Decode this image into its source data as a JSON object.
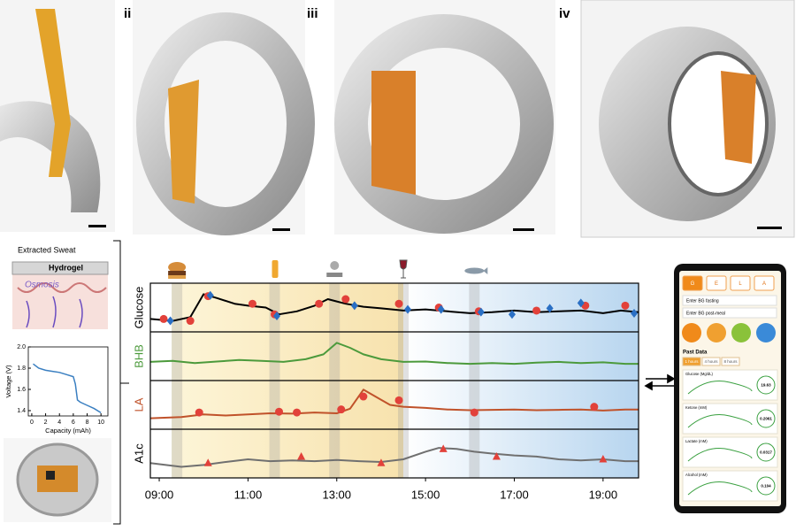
{
  "panel_labels": [
    "ii",
    "iii",
    "iv"
  ],
  "sweat_diagram": {
    "top": "Extracted Sweat",
    "hydrogel": "Hydrogel",
    "osmosis": "Osmosis"
  },
  "chart_data": [
    {
      "type": "line",
      "xlabel": "Capacity (mAh)",
      "ylabel": "Voltage (V)",
      "color": "#3a7fc1",
      "x": [
        0.2,
        1,
        2,
        3,
        4,
        5,
        6,
        6.3,
        6.6,
        7,
        8,
        9,
        10
      ],
      "values": [
        1.84,
        1.8,
        1.78,
        1.77,
        1.76,
        1.74,
        1.72,
        1.65,
        1.5,
        1.48,
        1.45,
        1.42,
        1.38
      ],
      "xlim": [
        -0.5,
        11
      ],
      "ylim": [
        1.35,
        2.0
      ],
      "xticks": [
        0,
        2,
        4,
        6,
        8,
        10
      ],
      "yticks": [
        1.4,
        1.6,
        1.8,
        {
          "value": 2.0,
          "label": "2.0"
        }
      ]
    },
    {
      "type": "tracks",
      "xlim": [
        8.8,
        19.8
      ],
      "xticks": [
        {
          "value": 9,
          "label": "09:00"
        },
        {
          "value": 11,
          "label": "11:00"
        },
        {
          "value": 13,
          "label": "13:00"
        },
        {
          "value": 15,
          "label": "15:00"
        },
        {
          "value": 17,
          "label": "17:00"
        },
        {
          "value": 19,
          "label": "19:00"
        }
      ],
      "event_times": [
        9.4,
        11.6,
        12.95,
        14.5,
        16.1
      ],
      "tracks": [
        {
          "name": "Glucose",
          "color": "#000000",
          "label_color": "#000000",
          "ylim": [
            0,
            1
          ],
          "x": [
            8.8,
            9.3,
            9.7,
            10,
            10.3,
            10.7,
            11,
            11.4,
            11.7,
            12.1,
            12.5,
            12.8,
            13.2,
            13.6,
            14,
            14.5,
            15,
            15.5,
            16,
            16.5,
            17,
            17.5,
            18,
            18.5,
            19,
            19.4,
            19.8
          ],
          "values": [
            0.2,
            0.15,
            0.25,
            0.85,
            0.75,
            0.6,
            0.55,
            0.5,
            0.32,
            0.4,
            0.55,
            0.72,
            0.6,
            0.52,
            0.48,
            0.42,
            0.45,
            0.4,
            0.35,
            0.38,
            0.42,
            0.38,
            0.4,
            0.42,
            0.35,
            0.42,
            0.38
          ],
          "markers": [
            {
              "shape": "circle",
              "color": "#e2413a",
              "x": [
                9.1,
                9.7,
                10.1,
                11.1,
                11.6,
                12.6,
                13.2,
                14.4,
                15.3,
                16.2,
                17.5,
                18.6,
                19.5
              ],
              "values": [
                0.2,
                0.15,
                0.8,
                0.6,
                0.32,
                0.6,
                0.72,
                0.6,
                0.5,
                0.4,
                0.42,
                0.55,
                0.55
              ]
            },
            {
              "shape": "diamond",
              "color": "#2a6fc4",
              "x": [
                9.25,
                10.15,
                11.65,
                13.4,
                14.6,
                15.35,
                16.25,
                16.95,
                17.8,
                18.5,
                19.7
              ],
              "values": [
                0.15,
                0.82,
                0.28,
                0.55,
                0.45,
                0.45,
                0.38,
                0.32,
                0.48,
                0.62,
                0.35
              ]
            }
          ]
        },
        {
          "name": "BHB",
          "color": "#4c9a3c",
          "label_color": "#4c9a3c",
          "ylim": [
            0,
            1
          ],
          "x": [
            8.8,
            9.3,
            9.8,
            10.3,
            10.8,
            11.3,
            11.8,
            12.3,
            12.7,
            13,
            13.3,
            13.6,
            14,
            14.5,
            15,
            15.5,
            16,
            16.5,
            17,
            17.5,
            18,
            18.5,
            19,
            19.5,
            19.8
          ],
          "values": [
            0.35,
            0.38,
            0.32,
            0.36,
            0.4,
            0.38,
            0.35,
            0.42,
            0.55,
            0.85,
            0.72,
            0.55,
            0.42,
            0.35,
            0.36,
            0.32,
            0.3,
            0.32,
            0.3,
            0.33,
            0.35,
            0.32,
            0.34,
            0.3,
            0.3
          ]
        },
        {
          "name": "LA",
          "color": "#c0522a",
          "label_color": "#c0522a",
          "ylim": [
            0,
            1
          ],
          "x": [
            8.8,
            9.5,
            10,
            10.5,
            11,
            11.5,
            12,
            12.5,
            13,
            13.3,
            13.6,
            13.9,
            14.2,
            14.5,
            15,
            15.5,
            16,
            16.5,
            17,
            17.5,
            18,
            18.5,
            19,
            19.5,
            19.8
          ],
          "values": [
            0.15,
            0.18,
            0.25,
            0.22,
            0.25,
            0.28,
            0.27,
            0.3,
            0.28,
            0.4,
            0.9,
            0.7,
            0.5,
            0.45,
            0.42,
            0.38,
            0.36,
            0.37,
            0.38,
            0.36,
            0.37,
            0.38,
            0.35,
            0.38,
            0.38
          ],
          "markers": [
            {
              "shape": "circle",
              "color": "#e2413a",
              "x": [
                9.9,
                11.7,
                12.1,
                13.1,
                13.6,
                14.4,
                16.1,
                18.8
              ],
              "values": [
                0.3,
                0.32,
                0.3,
                0.38,
                0.72,
                0.62,
                0.3,
                0.45
              ]
            }
          ]
        },
        {
          "name": "A1c",
          "color": "#707070",
          "label_color": "#000000",
          "ylim": [
            0,
            1
          ],
          "x": [
            8.8,
            9.5,
            10,
            10.5,
            11,
            11.5,
            12,
            12.5,
            13,
            13.5,
            14,
            14.5,
            15,
            15.3,
            15.7,
            16.1,
            16.5,
            17,
            17.5,
            18,
            18.5,
            19,
            19.5,
            19.8
          ],
          "values": [
            0.25,
            0.15,
            0.2,
            0.28,
            0.35,
            0.3,
            0.32,
            0.3,
            0.33,
            0.3,
            0.28,
            0.35,
            0.55,
            0.65,
            0.62,
            0.55,
            0.5,
            0.45,
            0.42,
            0.35,
            0.32,
            0.35,
            0.3,
            0.3
          ],
          "markers": [
            {
              "shape": "triangle",
              "color": "#e2413a",
              "x": [
                10.1,
                12.2,
                14,
                15.4,
                16.6,
                19
              ],
              "values": [
                0.25,
                0.42,
                0.25,
                0.62,
                0.42,
                0.35
              ]
            }
          ]
        }
      ]
    }
  ],
  "phone": {
    "tabs": [
      "G",
      "E",
      "L",
      "A"
    ],
    "inputs": [
      "Enter BG fasting",
      "Enter BG post-meal"
    ],
    "past_data": "Past Data",
    "ranges": [
      "1 hours",
      "4 hours",
      "8 hours"
    ],
    "cards": [
      {
        "label": "Glucose (Mg/dL)",
        "reading": "19.63"
      },
      {
        "label": "Ketone (mM)",
        "reading": "0.2061"
      },
      {
        "label": "Lactate (mM)",
        "reading": "0.0317"
      },
      {
        "label": "Alcohol (mM)",
        "reading": "0.104"
      }
    ]
  }
}
